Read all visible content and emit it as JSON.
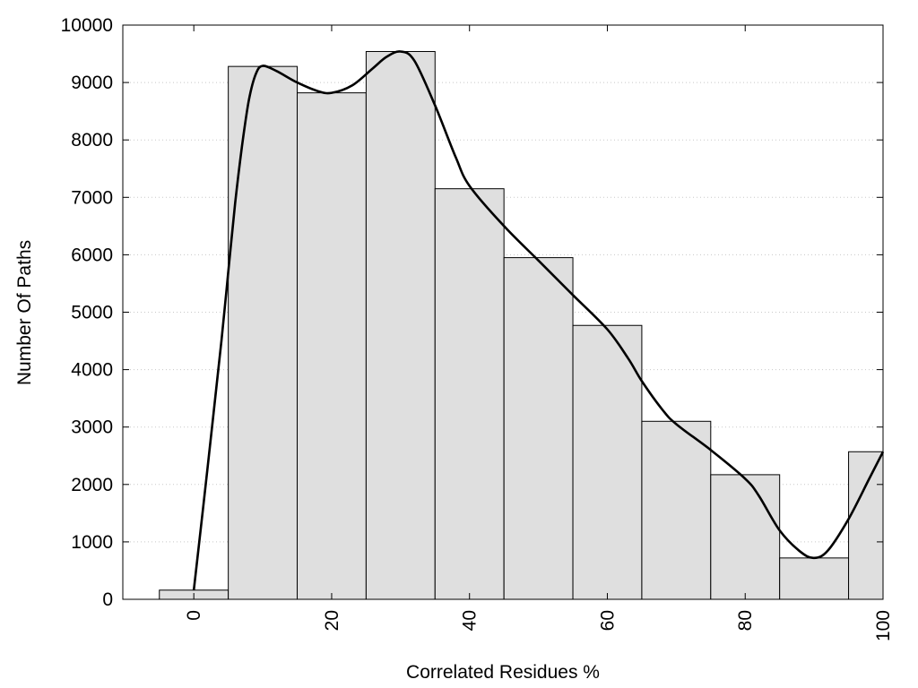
{
  "chart_data": {
    "type": "bar",
    "xlabel": "Correlated Residues %",
    "ylabel": "Number Of Paths",
    "xlim": [
      -10,
      100
    ],
    "ylim": [
      0,
      10000
    ],
    "grid": "horizontal dotted",
    "x_ticks": [
      "0",
      "20",
      "40",
      "60",
      "80",
      "100"
    ],
    "y_ticks": [
      "0",
      "1000",
      "2000",
      "3000",
      "4000",
      "5000",
      "6000",
      "7000",
      "8000",
      "9000",
      "10000"
    ],
    "bin_width": 10,
    "x": [
      0,
      10,
      20,
      30,
      40,
      50,
      60,
      70,
      80,
      90,
      100
    ],
    "values": [
      160,
      9280,
      8820,
      9540,
      7150,
      5950,
      4770,
      3100,
      2170,
      720,
      2570
    ],
    "curve": {
      "type": "smoothed line",
      "x": [
        0,
        2,
        4,
        5,
        6,
        7,
        8,
        9,
        10,
        12,
        15,
        18,
        20,
        23,
        26,
        28,
        30,
        32,
        35,
        38,
        40,
        45,
        50,
        55,
        60,
        63,
        65,
        68,
        70,
        75,
        80,
        82,
        85,
        88,
        90,
        92,
        95,
        98,
        100
      ],
      "y": [
        160,
        2300,
        4500,
        5700,
        6900,
        7900,
        8700,
        9150,
        9290,
        9200,
        9000,
        8850,
        8820,
        8950,
        9250,
        9450,
        9540,
        9380,
        8600,
        7700,
        7200,
        6500,
        5900,
        5300,
        4700,
        4200,
        3800,
        3300,
        3050,
        2600,
        2100,
        1800,
        1200,
        830,
        720,
        850,
        1400,
        2100,
        2570
      ]
    },
    "colors": {
      "bar_fill": "#dfdfdf",
      "bar_stroke": "#000000",
      "line": "#000000",
      "grid": "#c8c8c8"
    }
  }
}
